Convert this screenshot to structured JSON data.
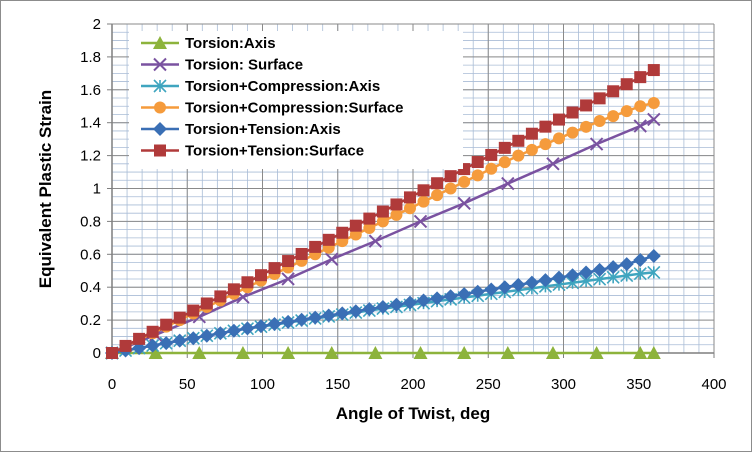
{
  "chart_data": {
    "type": "line",
    "title": "",
    "xlabel": "Angle of Twist, deg",
    "ylabel": "Equivalent  Plastic Strain",
    "xlim": [
      0,
      400
    ],
    "ylim": [
      0,
      2
    ],
    "xticks": [
      "0",
      "50",
      "100",
      "150",
      "200",
      "250",
      "300",
      "350",
      "400"
    ],
    "yticks": [
      "0",
      "0.2",
      "0.4",
      "0.6",
      "0.8",
      "1",
      "1.2",
      "1.4",
      "1.6",
      "1.8",
      "2"
    ],
    "grid": true,
    "legend_position": "top-left",
    "series": [
      {
        "name": "Torsion:Axis",
        "marker": "triangle",
        "color": "#8db33c",
        "x": [
          0,
          29,
          58,
          87,
          117,
          146,
          175,
          205,
          234,
          263,
          293,
          322,
          351,
          360
        ],
        "y": [
          0,
          0,
          0,
          0,
          0,
          0,
          0,
          0,
          0,
          0,
          0,
          0,
          0,
          0
        ]
      },
      {
        "name": "Torsion: Surface",
        "marker": "x",
        "color": "#7a52a0",
        "x": [
          0,
          29,
          58,
          87,
          117,
          146,
          175,
          205,
          234,
          263,
          293,
          322,
          351,
          360
        ],
        "y": [
          0,
          0.11,
          0.22,
          0.34,
          0.45,
          0.57,
          0.68,
          0.8,
          0.91,
          1.03,
          1.15,
          1.27,
          1.38,
          1.42
        ]
      },
      {
        "name": "Torsion+Compression:Axis",
        "marker": "asterisk",
        "color": "#3fa5bf",
        "x": [
          0,
          9,
          18,
          27,
          36,
          45,
          54,
          63,
          72,
          81,
          90,
          99,
          108,
          117,
          126,
          135,
          144,
          153,
          162,
          171,
          180,
          189,
          198,
          207,
          216,
          225,
          234,
          243,
          252,
          261,
          270,
          279,
          288,
          297,
          306,
          315,
          324,
          333,
          342,
          351,
          360
        ],
        "y": [
          0,
          0.015,
          0.03,
          0.045,
          0.06,
          0.075,
          0.09,
          0.105,
          0.12,
          0.135,
          0.148,
          0.16,
          0.172,
          0.185,
          0.197,
          0.21,
          0.222,
          0.234,
          0.246,
          0.258,
          0.27,
          0.28,
          0.292,
          0.303,
          0.315,
          0.326,
          0.337,
          0.348,
          0.36,
          0.371,
          0.382,
          0.393,
          0.405,
          0.416,
          0.427,
          0.438,
          0.449,
          0.46,
          0.471,
          0.482,
          0.49
        ]
      },
      {
        "name": "Torsion+Compression:Surface",
        "marker": "circle",
        "color": "#f59b3c",
        "x": [
          0,
          9,
          18,
          27,
          36,
          45,
          54,
          63,
          72,
          81,
          90,
          99,
          108,
          117,
          126,
          135,
          144,
          153,
          162,
          171,
          180,
          189,
          198,
          207,
          216,
          225,
          234,
          243,
          252,
          261,
          270,
          279,
          288,
          297,
          306,
          315,
          324,
          333,
          342,
          351,
          360
        ],
        "y": [
          0,
          0.04,
          0.08,
          0.12,
          0.16,
          0.2,
          0.24,
          0.28,
          0.32,
          0.36,
          0.4,
          0.44,
          0.48,
          0.52,
          0.56,
          0.6,
          0.64,
          0.68,
          0.72,
          0.76,
          0.8,
          0.84,
          0.88,
          0.92,
          0.96,
          1.0,
          1.04,
          1.08,
          1.12,
          1.16,
          1.2,
          1.235,
          1.27,
          1.305,
          1.34,
          1.375,
          1.41,
          1.44,
          1.47,
          1.5,
          1.52
        ]
      },
      {
        "name": "Torsion+Tension:Axis",
        "marker": "diamond",
        "color": "#3a6fb5",
        "x": [
          0,
          9,
          18,
          27,
          36,
          45,
          54,
          63,
          72,
          81,
          90,
          99,
          108,
          117,
          126,
          135,
          144,
          153,
          162,
          171,
          180,
          189,
          198,
          207,
          216,
          225,
          234,
          243,
          252,
          261,
          270,
          279,
          288,
          297,
          306,
          315,
          324,
          333,
          342,
          351,
          360
        ],
        "y": [
          0,
          0.015,
          0.03,
          0.045,
          0.06,
          0.075,
          0.09,
          0.105,
          0.12,
          0.135,
          0.15,
          0.163,
          0.176,
          0.189,
          0.202,
          0.215,
          0.228,
          0.241,
          0.254,
          0.267,
          0.28,
          0.293,
          0.306,
          0.319,
          0.332,
          0.345,
          0.358,
          0.372,
          0.386,
          0.4,
          0.414,
          0.428,
          0.443,
          0.458,
          0.473,
          0.489,
          0.505,
          0.522,
          0.54,
          0.565,
          0.59
        ]
      },
      {
        "name": "Torsion+Tension:Surface",
        "marker": "square",
        "color": "#b03a3a",
        "x": [
          0,
          9,
          18,
          27,
          36,
          45,
          54,
          63,
          72,
          81,
          90,
          99,
          108,
          117,
          126,
          135,
          144,
          153,
          162,
          171,
          180,
          189,
          198,
          207,
          216,
          225,
          234,
          243,
          252,
          261,
          270,
          279,
          288,
          297,
          306,
          315,
          324,
          333,
          342,
          351,
          360
        ],
        "y": [
          0,
          0.043,
          0.086,
          0.129,
          0.172,
          0.215,
          0.258,
          0.301,
          0.344,
          0.387,
          0.43,
          0.473,
          0.516,
          0.559,
          0.602,
          0.645,
          0.688,
          0.731,
          0.774,
          0.817,
          0.86,
          0.903,
          0.946,
          0.989,
          1.032,
          1.075,
          1.118,
          1.161,
          1.204,
          1.247,
          1.29,
          1.333,
          1.376,
          1.419,
          1.462,
          1.505,
          1.548,
          1.591,
          1.634,
          1.677,
          1.72
        ]
      }
    ]
  }
}
